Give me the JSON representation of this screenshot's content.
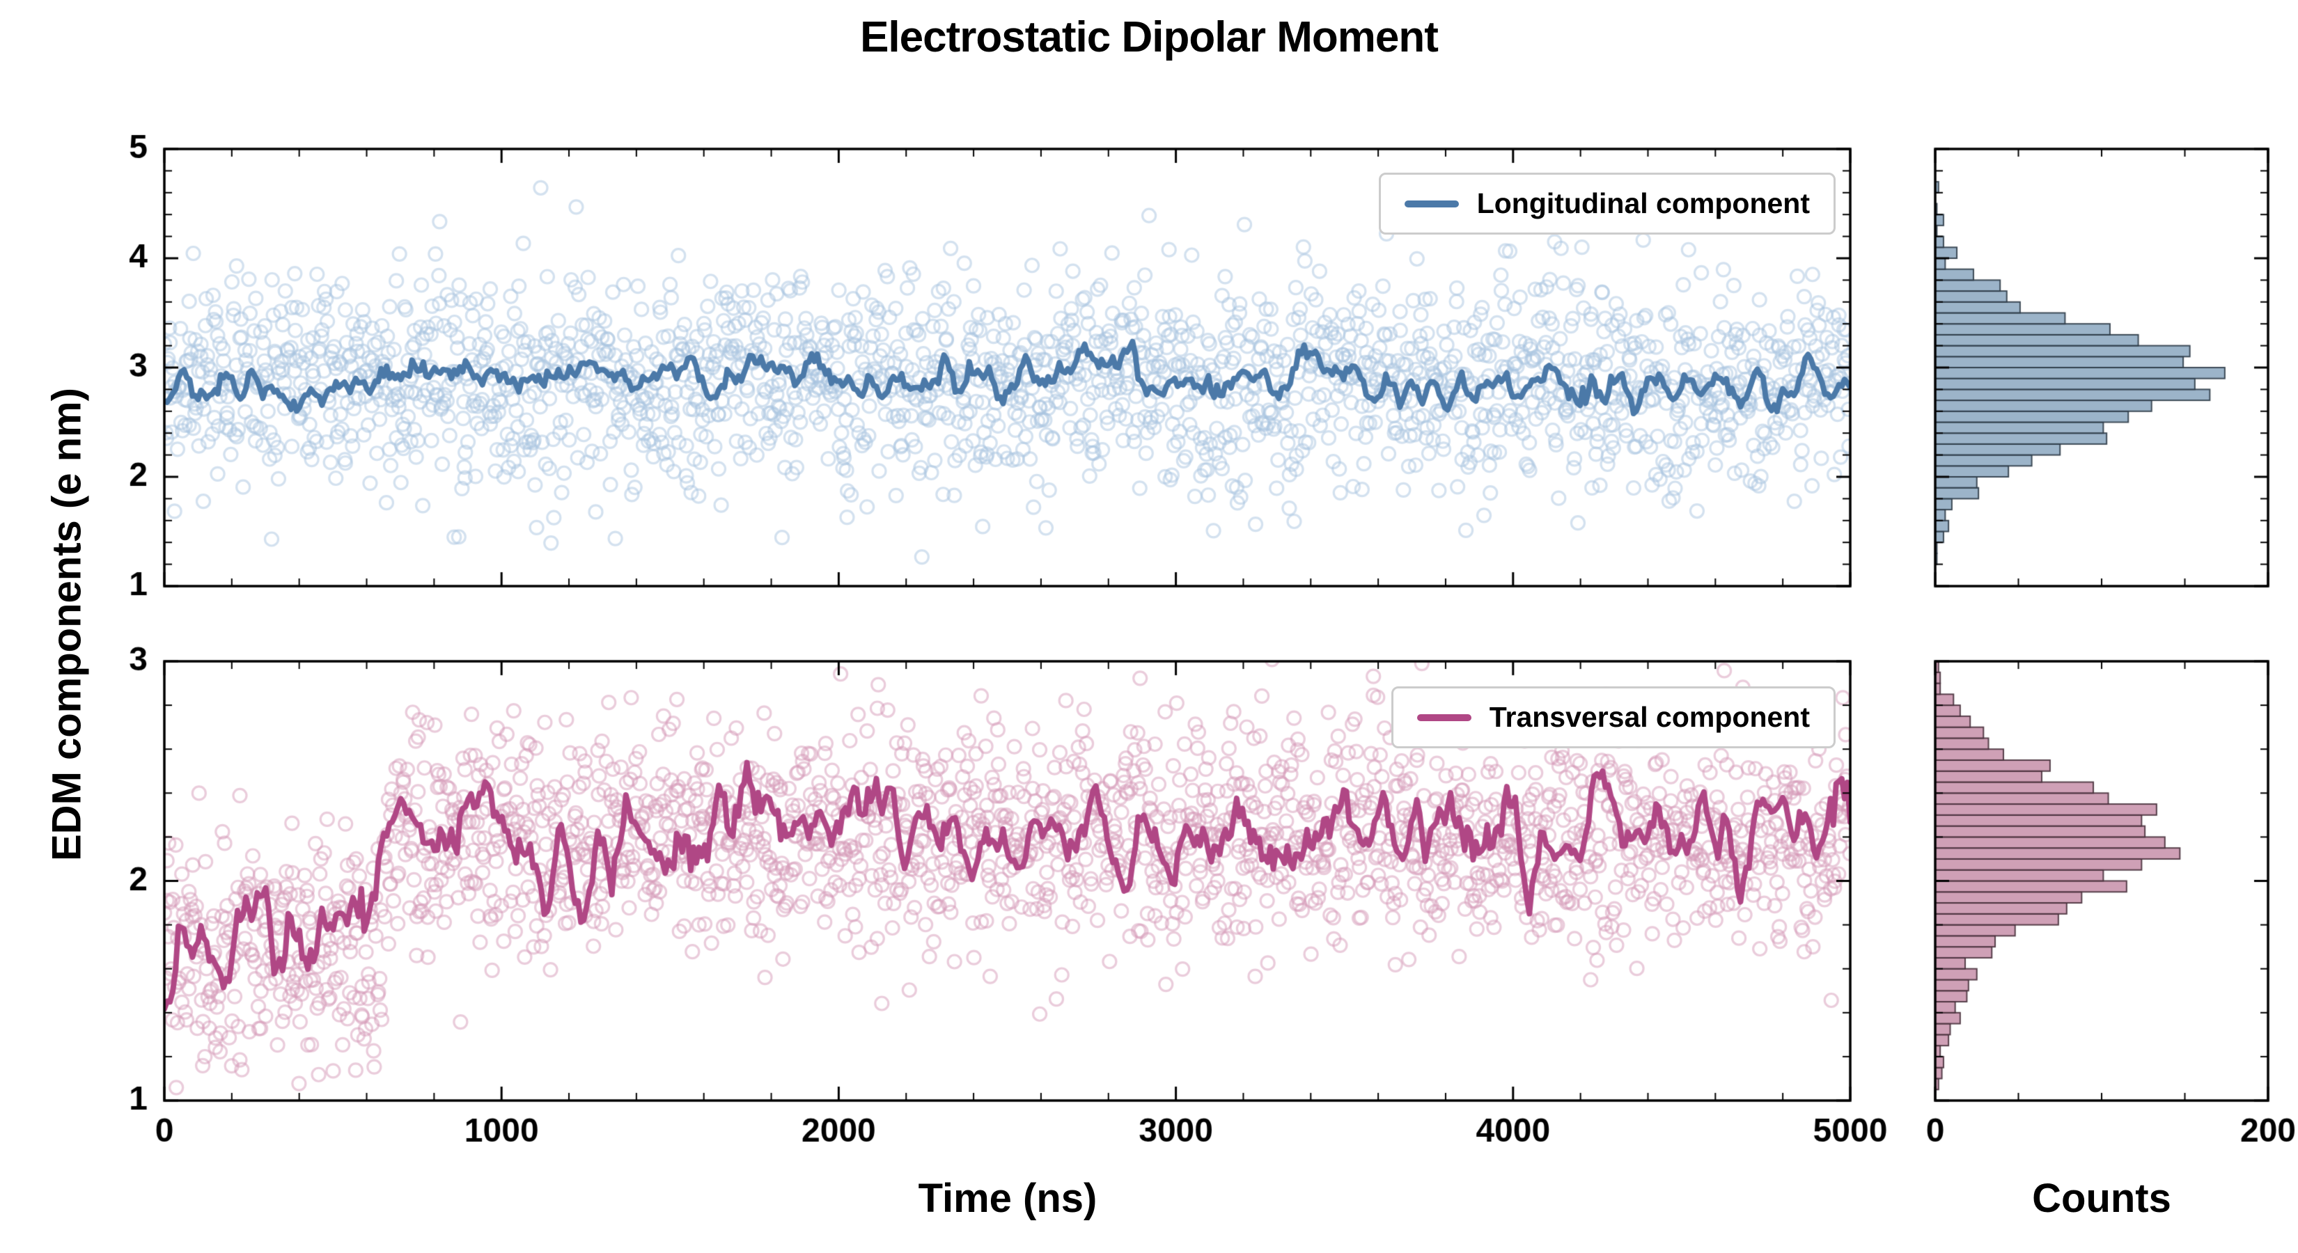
{
  "chart_data": {
    "type": "scatter",
    "title": "Electrostatic Dipolar Moment",
    "xlabel": "Time (ns)",
    "ylabel": "EDM components (e nm)",
    "counts_label": "Counts",
    "x_range_ns": [
      0,
      5000
    ],
    "x_ticks": [
      0,
      1000,
      2000,
      3000,
      4000,
      5000
    ],
    "x_minor_step": 200,
    "counts_axis": {
      "range": [
        0,
        200
      ],
      "ticks": [
        0,
        200
      ],
      "minor_step": 50
    },
    "seed": 1337,
    "panels": [
      {
        "id": "longitudinal",
        "legend_label": "Longitudinal component",
        "line_color": "#4b79a8",
        "scatter_color": "#a7c3e0",
        "hist_fill": "#8ba7bf",
        "hist_edge": "#2e3b47",
        "ylim": [
          1,
          5
        ],
        "y_ticks": [
          1,
          2,
          3,
          4,
          5
        ],
        "y_minor_step": 0.2,
        "n_points": 2000,
        "hist_bins": 40,
        "segments": [
          {
            "x_start": 0,
            "x_end": 5000,
            "mean": 2.88,
            "scatter_sigma": 0.5,
            "line_sigma": 0.12
          }
        ]
      },
      {
        "id": "transversal",
        "legend_label": "Transversal component",
        "line_color": "#b04785",
        "scatter_color": "#d59ab8",
        "hist_fill": "#c78fa9",
        "hist_edge": "#47303b",
        "ylim": [
          1,
          3
        ],
        "y_ticks": [
          1,
          2,
          3
        ],
        "y_minor_step": 0.2,
        "n_points": 2000,
        "hist_bins": 40,
        "segments": [
          {
            "x_start": 0,
            "x_end": 645,
            "mean": 1.72,
            "scatter_sigma": 0.3,
            "line_sigma": 0.13
          },
          {
            "x_start": 645,
            "x_end": 5000,
            "mean": 2.21,
            "scatter_sigma": 0.26,
            "line_sigma": 0.11
          }
        ]
      }
    ]
  }
}
